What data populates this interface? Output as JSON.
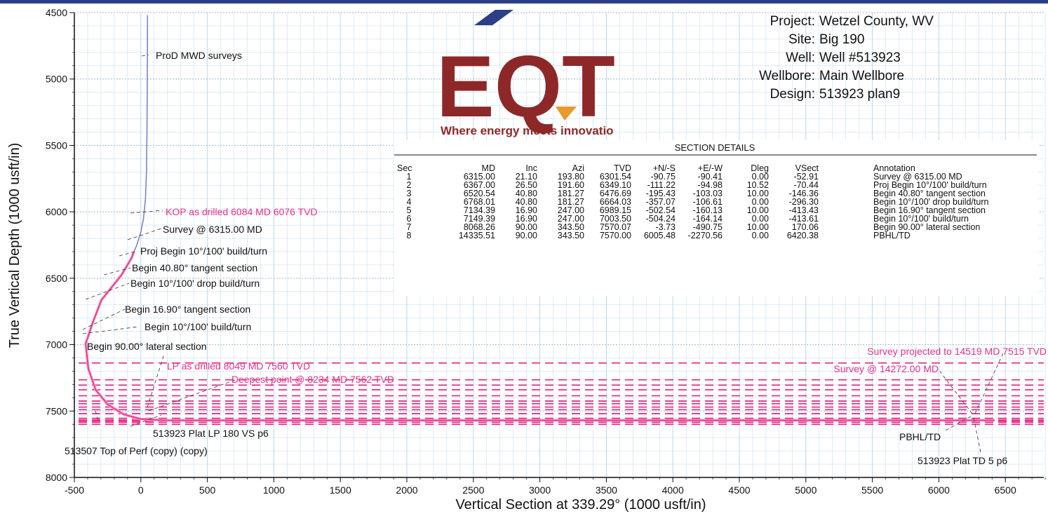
{
  "colors": {
    "grid": "#bcd9ef",
    "axis": "#111111",
    "wellpath": "#e8308a",
    "survey": "#7a84c8",
    "targets": "#e8308a",
    "logo": "#8e2828",
    "logo_accent": "#e89a2a",
    "topbar": "#2c3f86"
  },
  "logo": {
    "text": "EQT",
    "tagline": "Where energy meets innovatio"
  },
  "project_info": [
    {
      "label": "Project:",
      "value": "Wetzel County, WV"
    },
    {
      "label": "Site:",
      "value": "Big 190"
    },
    {
      "label": "Well:",
      "value": "Well #513923"
    },
    {
      "label": "Wellbore:",
      "value": "Main Wellbore"
    },
    {
      "label": "Design:",
      "value": "513923 plan9"
    }
  ],
  "section_details": {
    "title": "SECTION DETAILS",
    "headers": [
      "Sec",
      "MD",
      "Inc",
      "Azi",
      "TVD",
      "+N/-S",
      "+E/-W",
      "Dleg",
      "VSect",
      "Annotation"
    ],
    "rows": [
      [
        "1",
        "6315.00",
        "21.10",
        "193.80",
        "6301.54",
        "-90.75",
        "-90.41",
        "0.00",
        "-52.91",
        "Survey @ 6315.00 MD"
      ],
      [
        "2",
        "6367.00",
        "26.50",
        "191.60",
        "6349.10",
        "-111.22",
        "-94.98",
        "10.52",
        "-70.44",
        "Proj Begin 10°/100' build/turn"
      ],
      [
        "3",
        "6520.54",
        "40.80",
        "181.27",
        "6476.69",
        "-195.43",
        "-103.03",
        "10.00",
        "-146.36",
        "Begin 40.80° tangent section"
      ],
      [
        "4",
        "6768.01",
        "40.80",
        "181.27",
        "6664.03",
        "-357.07",
        "-106.61",
        "0.00",
        "-296.30",
        "Begin 10°/100' drop build/turn"
      ],
      [
        "5",
        "7134.39",
        "16.90",
        "247.00",
        "6989.15",
        "-502.54",
        "-160.13",
        "10.00",
        "-413.43",
        "Begin 16.90° tangent section"
      ],
      [
        "6",
        "7149.39",
        "16.90",
        "247.00",
        "7003.50",
        "-504.24",
        "-164.14",
        "0.00",
        "-413.61",
        "Begin 10°/100' build/turn"
      ],
      [
        "7",
        "8068.26",
        "90.00",
        "343.50",
        "7570.07",
        "-3.73",
        "-490.75",
        "10.00",
        "170.06",
        "Begin 90.00° lateral section"
      ],
      [
        "8",
        "14335.51",
        "90.00",
        "343.50",
        "7570.00",
        "6005.48",
        "-2270.56",
        "0.00",
        "6420.38",
        "PBHL/TD"
      ]
    ]
  },
  "chart_data": {
    "type": "line",
    "xlabel": "Vertical Section at 339.29° (1000 usft/in)",
    "ylabel": "True Vertical Depth (1000 usft/in)",
    "xlim": [
      -500,
      7000
    ],
    "ylim": [
      8000,
      4500
    ],
    "y_inverted": true,
    "grid": true,
    "x_ticks": [
      -500,
      0,
      500,
      1000,
      1500,
      2000,
      2500,
      3000,
      3500,
      4000,
      4500,
      5000,
      5500,
      6000,
      6500
    ],
    "y_ticks": [
      4500,
      5000,
      5500,
      6000,
      6500,
      7000,
      7500,
      8000
    ],
    "series": [
      {
        "name": "ProD MWD surveys",
        "kind": "survey",
        "x": [
          50,
          49,
          48,
          46,
          42,
          35,
          20,
          0,
          -30,
          -53
        ],
        "y": [
          4520,
          4800,
          5100,
          5400,
          5700,
          5900,
          6050,
          6150,
          6250,
          6301
        ]
      },
      {
        "name": "",
        "kind": "plan",
        "x": [
          -52.91,
          -70.44,
          -146.36,
          -296.3,
          -360,
          -413.43,
          -413.61,
          -395,
          -340,
          -250,
          -130,
          0,
          170.06,
          6420.38
        ],
        "y": [
          6301.54,
          6349.1,
          6476.69,
          6664.03,
          6830,
          6989.15,
          7003.5,
          7180,
          7340,
          7450,
          7525,
          7560,
          7570.07,
          7570.0
        ]
      }
    ],
    "target_lines_tvd": [
      7138,
      7265,
      7305,
      7340,
      7385,
      7425,
      7445,
      7470,
      7490,
      7520,
      7555,
      7568,
      7575,
      7585,
      7600
    ],
    "annotations": [
      {
        "text": "ProD MWD surveys",
        "color": "black"
      },
      {
        "text": "KOP as drilled 6084 MD 6076 TVD",
        "color": "pink"
      },
      {
        "text": "Survey @ 6315.00 MD",
        "color": "black"
      },
      {
        "text": "Proj Begin 10°/100' build/turn",
        "color": "black"
      },
      {
        "text": "Begin 40.80° tangent section",
        "color": "black"
      },
      {
        "text": "Begin 10°/100' drop build/turn",
        "color": "black"
      },
      {
        "text": "Begin 16.90° tangent section",
        "color": "black"
      },
      {
        "text": "Begin 10°/100' build/turn",
        "color": "black"
      },
      {
        "text": "Begin 90.00° lateral section",
        "color": "black"
      },
      {
        "text": "LP as drilled 8049 MD 7560 TVD",
        "color": "pink"
      },
      {
        "text": "Deepest point @ 8234 MD 7562 TVD",
        "color": "pink"
      },
      {
        "text": "513923 Plat LP 180 VS p6",
        "color": "black"
      },
      {
        "text": "513507 Top of Perf (copy) (copy)",
        "color": "black"
      },
      {
        "text": "Survey projected to 14519 MD 7515 TVD",
        "color": "pink"
      },
      {
        "text": "Survey @ 14272.00 MD",
        "color": "pink"
      },
      {
        "text": "PBHL/TD",
        "color": "black"
      },
      {
        "text": "513923 Plat TD 5 p6",
        "color": "black"
      }
    ]
  }
}
